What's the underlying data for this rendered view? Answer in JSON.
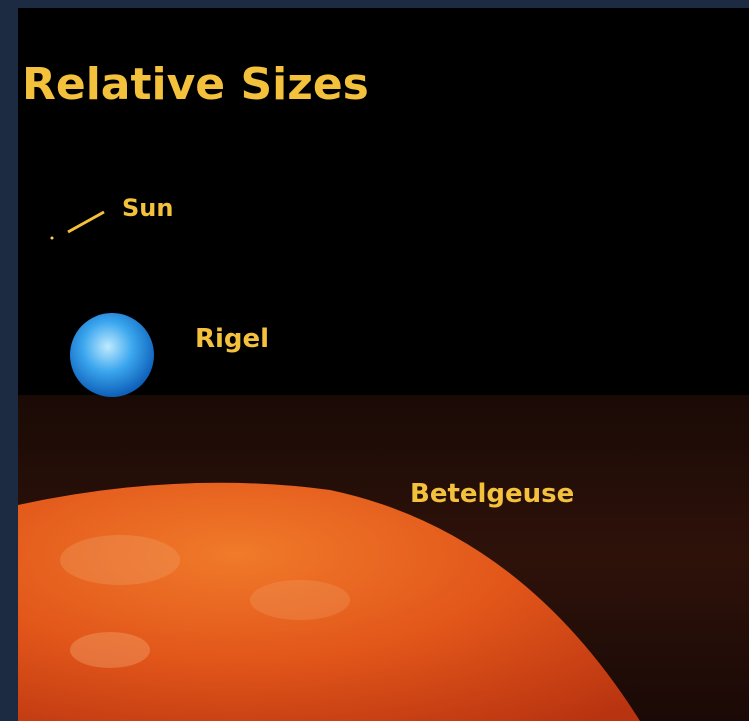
{
  "title": "Relative Sizes",
  "stars": [
    {
      "label": "Sun"
    },
    {
      "label": "Rigel"
    },
    {
      "label": "Betelgeuse"
    }
  ]
}
